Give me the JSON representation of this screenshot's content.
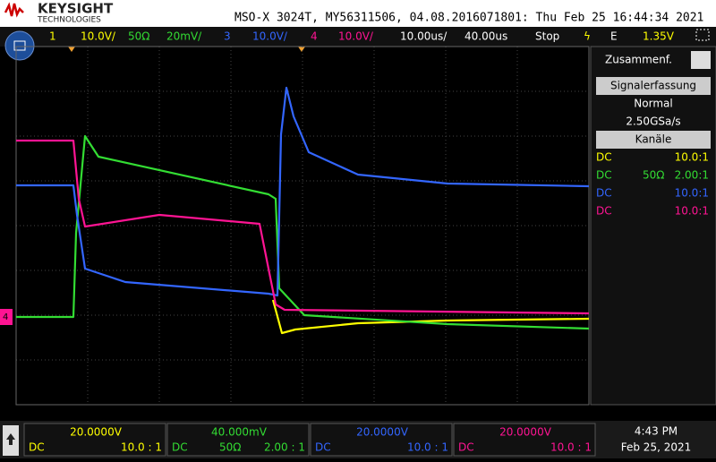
{
  "brand": {
    "name": "KEYSIGHT",
    "sub": "TECHNOLOGIES"
  },
  "header": "MSO-X 3024T, MY56311506, 04.08.2016071801: Thu Feb 25 16:44:34 2021",
  "toolbar": {
    "ch1": "1",
    "ch1_scale": "10.0V/",
    "ch2_imp": "50Ω",
    "ch2_scale": "20mV/",
    "ch3": "3",
    "ch3_scale": "10.0V/",
    "ch4": "4",
    "ch4_scale": "10.0V/",
    "timebase": "10.00us/",
    "delay": "40.00us",
    "run": "Stop",
    "trig_mode": "E",
    "trig_level": "1.35V"
  },
  "side_panel": {
    "title": "Zusammenf.",
    "acq_button": "Signalerfassung",
    "acq_mode": "Normal",
    "sample_rate": "2.50GSa/s",
    "channels_button": "Kanäle",
    "rows": [
      {
        "coupling": "DC",
        "probe": "10.0:1"
      },
      {
        "coupling": "DC",
        "impedance": "50Ω",
        "probe": "2.00:1"
      },
      {
        "coupling": "DC",
        "probe": "10.0:1"
      },
      {
        "coupling": "DC",
        "probe": "10.0:1"
      }
    ]
  },
  "marker": "4",
  "bottom": {
    "channels": [
      {
        "scale": "20.0000V",
        "coupling": "DC",
        "probe": "10.0 : 1"
      },
      {
        "scale": "40.000mV",
        "coupling": "DC",
        "impedance": "50Ω",
        "probe": "2.00 : 1"
      },
      {
        "scale": "20.0000V",
        "coupling": "DC",
        "probe": "10.0 : 1"
      },
      {
        "scale": "20.0000V",
        "coupling": "DC",
        "probe": "10.0 : 1"
      }
    ],
    "time": "4:43 PM",
    "date": "Feb 25, 2021"
  }
}
